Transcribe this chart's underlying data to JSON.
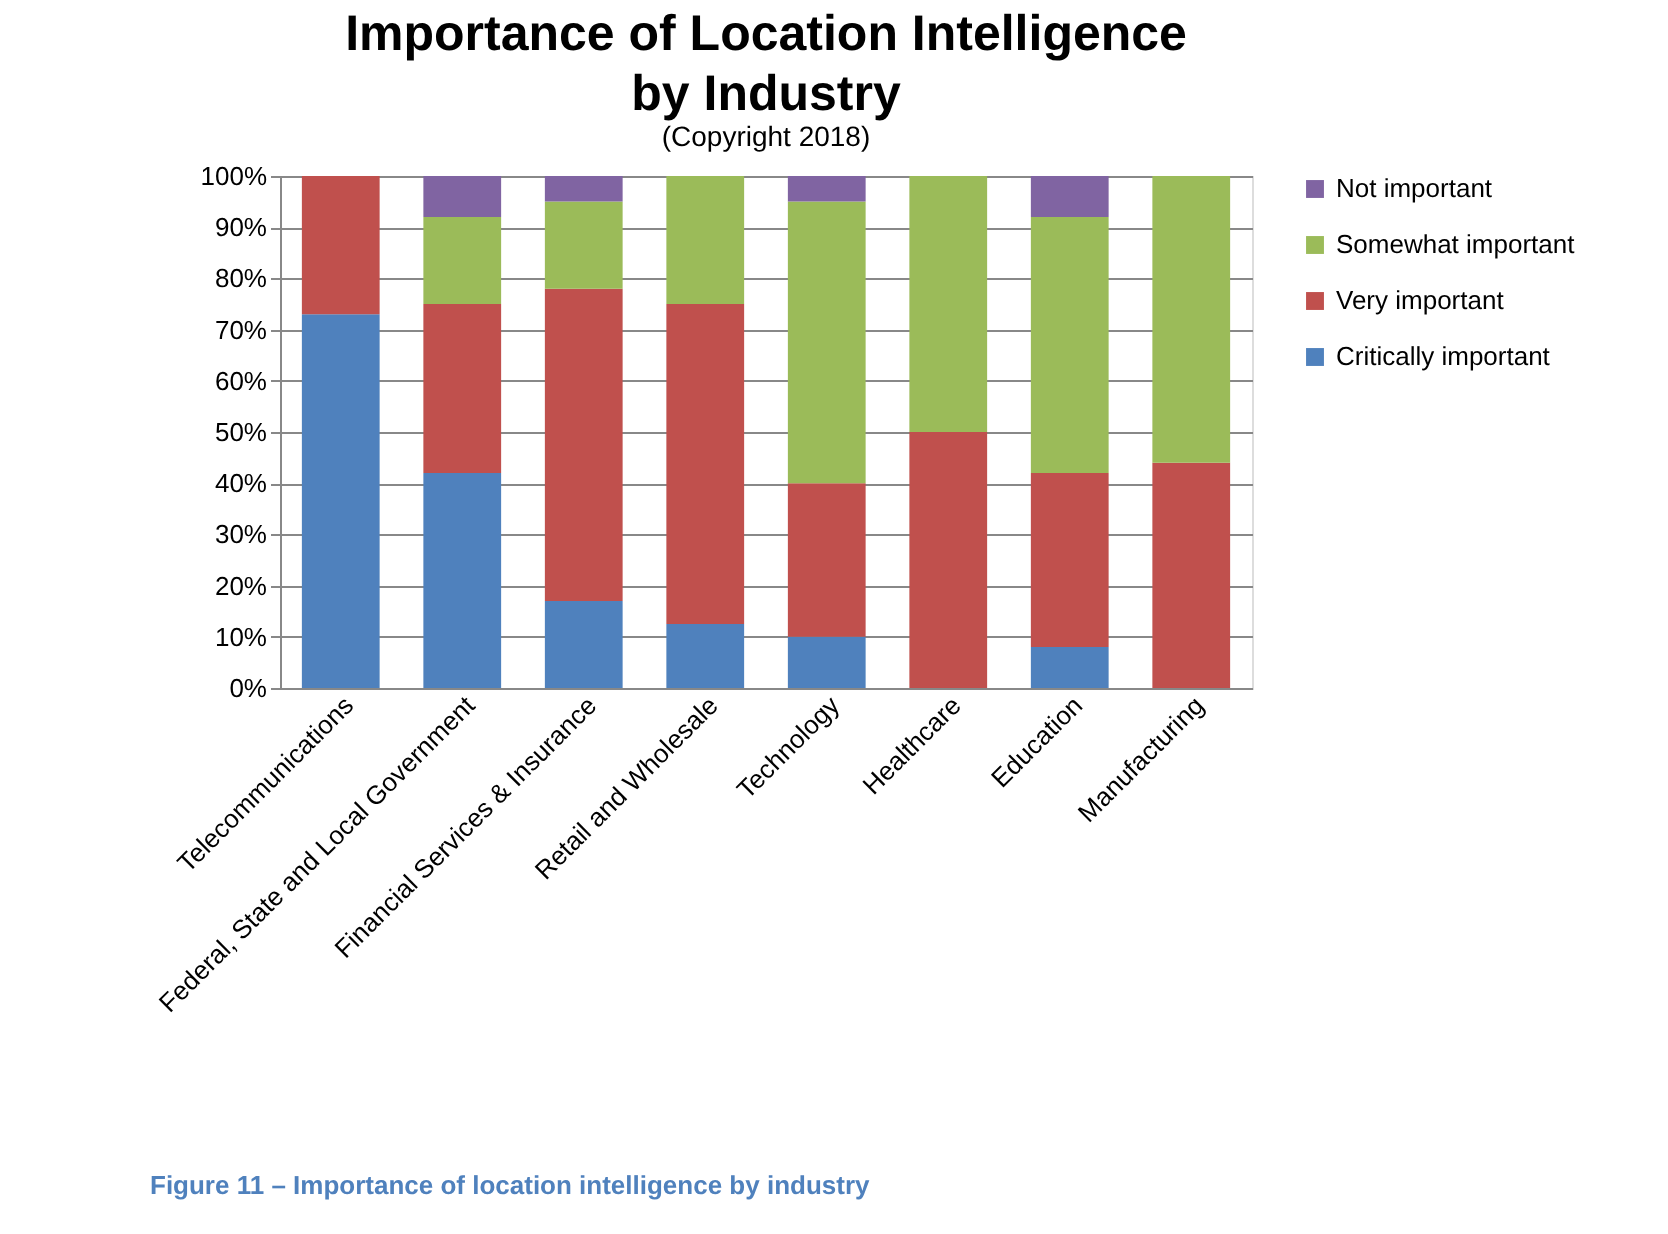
{
  "chart_data": {
    "type": "bar",
    "title": [
      "Importance of Location Intelligence",
      "by Industry"
    ],
    "subtitle": "(Copyright 2018)",
    "categories": [
      "Telecommunications",
      "Federal, State and Local Government",
      "Financial Services & Insurance",
      "Retail and Wholesale",
      "Technology",
      "Healthcare",
      "Education",
      "Manufacturing"
    ],
    "stacked": true,
    "series": [
      {
        "name": "Critically important",
        "color": "#4f81bd",
        "values": [
          73,
          42,
          17,
          12.5,
          10,
          0,
          8,
          0
        ]
      },
      {
        "name": "Very important",
        "color": "#c0504d",
        "values": [
          27,
          33,
          61,
          62.5,
          30,
          50,
          34,
          44
        ]
      },
      {
        "name": "Somewhat important",
        "color": "#9bbb59",
        "values": [
          0,
          17,
          17,
          25,
          55,
          50,
          50,
          56
        ]
      },
      {
        "name": "Not  important",
        "color": "#8064a2",
        "values": [
          0,
          8,
          5,
          0,
          5,
          0,
          8,
          0
        ]
      }
    ],
    "ylim": [
      0,
      100
    ],
    "yticks": [
      {
        "value": 0,
        "label": "0%"
      },
      {
        "value": 10,
        "label": "10%"
      },
      {
        "value": 20,
        "label": "20%"
      },
      {
        "value": 30,
        "label": "30%"
      },
      {
        "value": 40,
        "label": "40%"
      },
      {
        "value": 50,
        "label": "50%"
      },
      {
        "value": 60,
        "label": "60%"
      },
      {
        "value": 70,
        "label": "70%"
      },
      {
        "value": 80,
        "label": "80%"
      },
      {
        "value": 90,
        "label": "90%"
      },
      {
        "value": 100,
        "label": "100%"
      }
    ],
    "grid": "y",
    "legend": "right",
    "annotations": [
      "Figure 11 – Importance of location intelligence by industry"
    ]
  }
}
